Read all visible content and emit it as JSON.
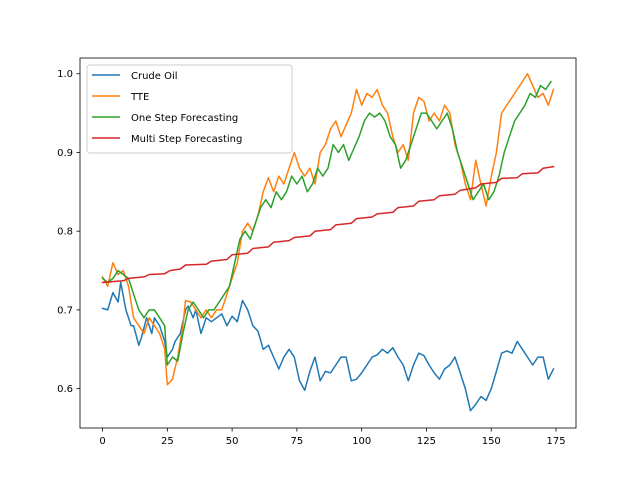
{
  "chart_data": {
    "type": "line",
    "title": "",
    "xlabel": "",
    "ylabel": "",
    "xlim": [
      -8.7,
      182.7
    ],
    "ylim": [
      0.55,
      1.02
    ],
    "xticks": [
      0,
      25,
      50,
      75,
      100,
      125,
      150,
      175
    ],
    "xtick_labels": [
      "0",
      "25",
      "50",
      "75",
      "100",
      "125",
      "150",
      "175"
    ],
    "yticks": [
      0.6,
      0.7,
      0.8,
      0.9,
      1.0
    ],
    "ytick_labels": [
      "0.6",
      "0.7",
      "0.8",
      "0.9",
      "1.0"
    ],
    "grid": false,
    "legend_position": "upper-left",
    "series": [
      {
        "name": "Crude Oil",
        "color": "#1f77b4",
        "points": [
          [
            0,
            0.702
          ],
          [
            2,
            0.7
          ],
          [
            4,
            0.722
          ],
          [
            6,
            0.71
          ],
          [
            7,
            0.735
          ],
          [
            9,
            0.7
          ],
          [
            11,
            0.68
          ],
          [
            12,
            0.68
          ],
          [
            14,
            0.655
          ],
          [
            15,
            0.665
          ],
          [
            17,
            0.69
          ],
          [
            19,
            0.67
          ],
          [
            20,
            0.69
          ],
          [
            22,
            0.68
          ],
          [
            24,
            0.66
          ],
          [
            25,
            0.64
          ],
          [
            27,
            0.65
          ],
          [
            28,
            0.66
          ],
          [
            30,
            0.67
          ],
          [
            32,
            0.7
          ],
          [
            33,
            0.705
          ],
          [
            35,
            0.69
          ],
          [
            36,
            0.7
          ],
          [
            38,
            0.67
          ],
          [
            40,
            0.69
          ],
          [
            42,
            0.685
          ],
          [
            44,
            0.69
          ],
          [
            46,
            0.695
          ],
          [
            48,
            0.68
          ],
          [
            50,
            0.692
          ],
          [
            52,
            0.685
          ],
          [
            54,
            0.712
          ],
          [
            56,
            0.7
          ],
          [
            58,
            0.68
          ],
          [
            60,
            0.673
          ],
          [
            62,
            0.65
          ],
          [
            64,
            0.655
          ],
          [
            66,
            0.64
          ],
          [
            68,
            0.625
          ],
          [
            70,
            0.64
          ],
          [
            72,
            0.65
          ],
          [
            74,
            0.64
          ],
          [
            76,
            0.61
          ],
          [
            78,
            0.598
          ],
          [
            80,
            0.622
          ],
          [
            82,
            0.64
          ],
          [
            84,
            0.61
          ],
          [
            86,
            0.622
          ],
          [
            88,
            0.62
          ],
          [
            90,
            0.63
          ],
          [
            92,
            0.64
          ],
          [
            94,
            0.64
          ],
          [
            96,
            0.61
          ],
          [
            98,
            0.612
          ],
          [
            100,
            0.62
          ],
          [
            102,
            0.63
          ],
          [
            104,
            0.64
          ],
          [
            106,
            0.643
          ],
          [
            108,
            0.65
          ],
          [
            110,
            0.645
          ],
          [
            112,
            0.652
          ],
          [
            114,
            0.64
          ],
          [
            116,
            0.63
          ],
          [
            118,
            0.61
          ],
          [
            120,
            0.63
          ],
          [
            122,
            0.645
          ],
          [
            124,
            0.642
          ],
          [
            126,
            0.63
          ],
          [
            128,
            0.62
          ],
          [
            130,
            0.612
          ],
          [
            132,
            0.625
          ],
          [
            134,
            0.63
          ],
          [
            136,
            0.64
          ],
          [
            138,
            0.62
          ],
          [
            140,
            0.6
          ],
          [
            142,
            0.572
          ],
          [
            144,
            0.58
          ],
          [
            146,
            0.59
          ],
          [
            148,
            0.585
          ],
          [
            150,
            0.6
          ],
          [
            152,
            0.622
          ],
          [
            154,
            0.645
          ],
          [
            156,
            0.648
          ],
          [
            158,
            0.645
          ],
          [
            160,
            0.66
          ],
          [
            162,
            0.65
          ],
          [
            164,
            0.64
          ],
          [
            166,
            0.63
          ],
          [
            168,
            0.64
          ],
          [
            170,
            0.64
          ],
          [
            172,
            0.612
          ],
          [
            174,
            0.625
          ]
        ]
      },
      {
        "name": "TTE",
        "color": "#ff7f0e",
        "points": [
          [
            0,
            0.742
          ],
          [
            2,
            0.73
          ],
          [
            4,
            0.76
          ],
          [
            6,
            0.745
          ],
          [
            8,
            0.75
          ],
          [
            10,
            0.73
          ],
          [
            12,
            0.69
          ],
          [
            14,
            0.68
          ],
          [
            16,
            0.67
          ],
          [
            18,
            0.69
          ],
          [
            20,
            0.68
          ],
          [
            22,
            0.67
          ],
          [
            24,
            0.65
          ],
          [
            25,
            0.605
          ],
          [
            27,
            0.612
          ],
          [
            29,
            0.64
          ],
          [
            31,
            0.68
          ],
          [
            32,
            0.712
          ],
          [
            34,
            0.71
          ],
          [
            36,
            0.7
          ],
          [
            38,
            0.69
          ],
          [
            40,
            0.7
          ],
          [
            42,
            0.69
          ],
          [
            44,
            0.7
          ],
          [
            46,
            0.7
          ],
          [
            48,
            0.72
          ],
          [
            50,
            0.74
          ],
          [
            52,
            0.76
          ],
          [
            54,
            0.8
          ],
          [
            56,
            0.81
          ],
          [
            58,
            0.8
          ],
          [
            60,
            0.82
          ],
          [
            62,
            0.85
          ],
          [
            64,
            0.868
          ],
          [
            66,
            0.85
          ],
          [
            68,
            0.87
          ],
          [
            70,
            0.86
          ],
          [
            72,
            0.88
          ],
          [
            74,
            0.9
          ],
          [
            76,
            0.88
          ],
          [
            78,
            0.87
          ],
          [
            80,
            0.88
          ],
          [
            82,
            0.86
          ],
          [
            84,
            0.9
          ],
          [
            86,
            0.91
          ],
          [
            88,
            0.93
          ],
          [
            90,
            0.94
          ],
          [
            92,
            0.92
          ],
          [
            94,
            0.935
          ],
          [
            96,
            0.95
          ],
          [
            98,
            0.98
          ],
          [
            100,
            0.96
          ],
          [
            102,
            0.975
          ],
          [
            104,
            0.97
          ],
          [
            106,
            0.98
          ],
          [
            108,
            0.96
          ],
          [
            110,
            0.95
          ],
          [
            112,
            0.92
          ],
          [
            114,
            0.9
          ],
          [
            116,
            0.91
          ],
          [
            118,
            0.89
          ],
          [
            120,
            0.95
          ],
          [
            122,
            0.97
          ],
          [
            124,
            0.965
          ],
          [
            126,
            0.94
          ],
          [
            128,
            0.95
          ],
          [
            130,
            0.94
          ],
          [
            132,
            0.96
          ],
          [
            134,
            0.95
          ],
          [
            136,
            0.91
          ],
          [
            138,
            0.89
          ],
          [
            140,
            0.86
          ],
          [
            142,
            0.84
          ],
          [
            144,
            0.89
          ],
          [
            146,
            0.86
          ],
          [
            148,
            0.832
          ],
          [
            150,
            0.87
          ],
          [
            152,
            0.9
          ],
          [
            154,
            0.95
          ],
          [
            156,
            0.96
          ],
          [
            158,
            0.97
          ],
          [
            160,
            0.98
          ],
          [
            162,
            0.99
          ],
          [
            164,
            1.0
          ],
          [
            166,
            0.985
          ],
          [
            168,
            0.97
          ],
          [
            170,
            0.975
          ],
          [
            172,
            0.96
          ],
          [
            174,
            0.98
          ]
        ]
      },
      {
        "name": "One Step Forecasting",
        "color": "#2ca02c",
        "points": [
          [
            0,
            0.74
          ],
          [
            2,
            0.735
          ],
          [
            4,
            0.74
          ],
          [
            6,
            0.75
          ],
          [
            8,
            0.745
          ],
          [
            10,
            0.74
          ],
          [
            12,
            0.72
          ],
          [
            14,
            0.7
          ],
          [
            16,
            0.69
          ],
          [
            18,
            0.7
          ],
          [
            20,
            0.7
          ],
          [
            22,
            0.69
          ],
          [
            24,
            0.68
          ],
          [
            25,
            0.63
          ],
          [
            27,
            0.64
          ],
          [
            29,
            0.635
          ],
          [
            31,
            0.67
          ],
          [
            33,
            0.7
          ],
          [
            35,
            0.71
          ],
          [
            37,
            0.7
          ],
          [
            39,
            0.69
          ],
          [
            41,
            0.7
          ],
          [
            43,
            0.7
          ],
          [
            45,
            0.71
          ],
          [
            47,
            0.72
          ],
          [
            49,
            0.73
          ],
          [
            51,
            0.76
          ],
          [
            53,
            0.79
          ],
          [
            55,
            0.8
          ],
          [
            57,
            0.79
          ],
          [
            59,
            0.81
          ],
          [
            61,
            0.83
          ],
          [
            63,
            0.84
          ],
          [
            65,
            0.83
          ],
          [
            67,
            0.85
          ],
          [
            69,
            0.84
          ],
          [
            71,
            0.85
          ],
          [
            73,
            0.87
          ],
          [
            75,
            0.86
          ],
          [
            77,
            0.87
          ],
          [
            79,
            0.85
          ],
          [
            81,
            0.86
          ],
          [
            83,
            0.88
          ],
          [
            85,
            0.87
          ],
          [
            87,
            0.88
          ],
          [
            89,
            0.91
          ],
          [
            91,
            0.9
          ],
          [
            93,
            0.91
          ],
          [
            95,
            0.89
          ],
          [
            97,
            0.905
          ],
          [
            99,
            0.92
          ],
          [
            101,
            0.94
          ],
          [
            103,
            0.95
          ],
          [
            105,
            0.945
          ],
          [
            107,
            0.95
          ],
          [
            109,
            0.94
          ],
          [
            111,
            0.92
          ],
          [
            113,
            0.91
          ],
          [
            115,
            0.88
          ],
          [
            117,
            0.89
          ],
          [
            119,
            0.91
          ],
          [
            121,
            0.93
          ],
          [
            123,
            0.95
          ],
          [
            125,
            0.95
          ],
          [
            127,
            0.94
          ],
          [
            129,
            0.93
          ],
          [
            131,
            0.94
          ],
          [
            133,
            0.95
          ],
          [
            135,
            0.93
          ],
          [
            137,
            0.9
          ],
          [
            139,
            0.88
          ],
          [
            141,
            0.86
          ],
          [
            143,
            0.84
          ],
          [
            145,
            0.85
          ],
          [
            147,
            0.86
          ],
          [
            149,
            0.84
          ],
          [
            151,
            0.85
          ],
          [
            153,
            0.87
          ],
          [
            155,
            0.9
          ],
          [
            157,
            0.92
          ],
          [
            159,
            0.94
          ],
          [
            161,
            0.95
          ],
          [
            163,
            0.96
          ],
          [
            165,
            0.975
          ],
          [
            167,
            0.97
          ],
          [
            169,
            0.985
          ],
          [
            171,
            0.98
          ],
          [
            173,
            0.99
          ]
        ]
      },
      {
        "name": "Multi Step Forecasting",
        "color": "#d62728",
        "points": [
          [
            0,
            0.735
          ],
          [
            8,
            0.737
          ],
          [
            10,
            0.74
          ],
          [
            16,
            0.742
          ],
          [
            18,
            0.745
          ],
          [
            24,
            0.746
          ],
          [
            26,
            0.75
          ],
          [
            30,
            0.752
          ],
          [
            32,
            0.757
          ],
          [
            40,
            0.758
          ],
          [
            42,
            0.762
          ],
          [
            48,
            0.764
          ],
          [
            50,
            0.77
          ],
          [
            56,
            0.772
          ],
          [
            58,
            0.778
          ],
          [
            64,
            0.78
          ],
          [
            66,
            0.786
          ],
          [
            72,
            0.788
          ],
          [
            74,
            0.792
          ],
          [
            80,
            0.794
          ],
          [
            82,
            0.8
          ],
          [
            88,
            0.802
          ],
          [
            90,
            0.808
          ],
          [
            96,
            0.81
          ],
          [
            98,
            0.816
          ],
          [
            104,
            0.818
          ],
          [
            106,
            0.822
          ],
          [
            112,
            0.824
          ],
          [
            114,
            0.83
          ],
          [
            120,
            0.832
          ],
          [
            122,
            0.838
          ],
          [
            128,
            0.84
          ],
          [
            130,
            0.845
          ],
          [
            136,
            0.847
          ],
          [
            138,
            0.852
          ],
          [
            144,
            0.855
          ],
          [
            146,
            0.86
          ],
          [
            152,
            0.862
          ],
          [
            154,
            0.867
          ],
          [
            160,
            0.868
          ],
          [
            162,
            0.873
          ],
          [
            168,
            0.874
          ],
          [
            170,
            0.88
          ],
          [
            174,
            0.882
          ]
        ]
      }
    ]
  }
}
